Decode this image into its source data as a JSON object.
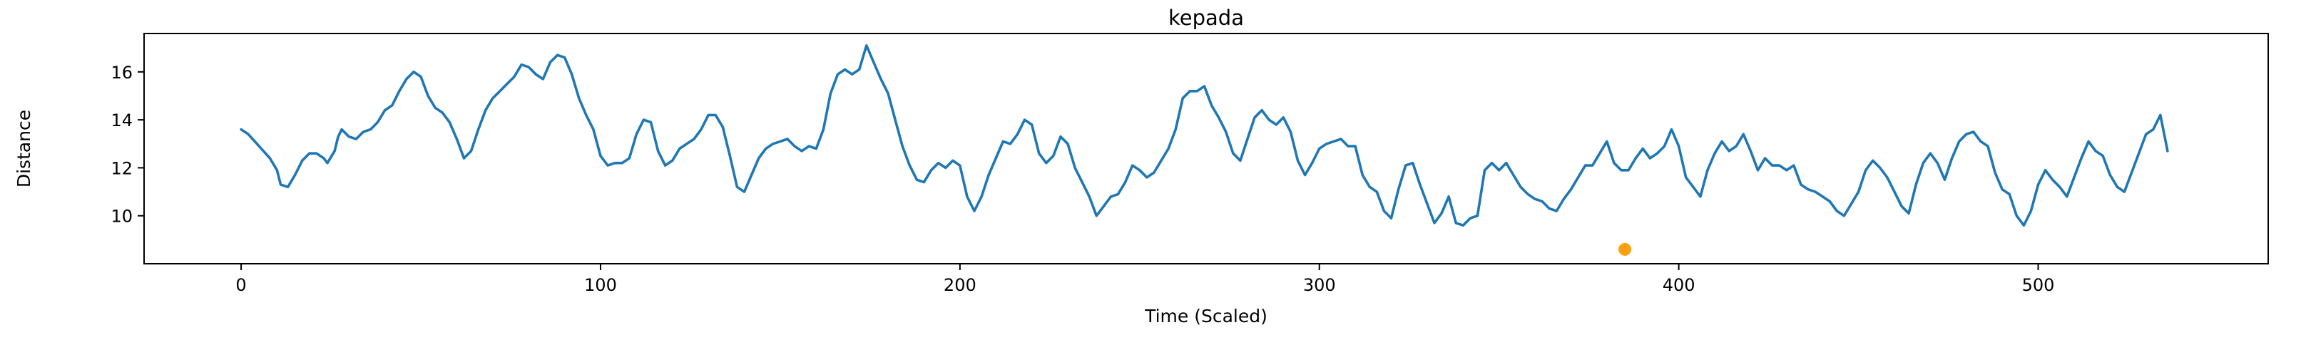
{
  "chart_data": {
    "type": "line",
    "title": "kepada",
    "xlabel": "Time (Scaled)",
    "ylabel": "Distance",
    "xlim": [
      -27,
      564
    ],
    "ylim": [
      8.0,
      17.6
    ],
    "xticks": [
      0,
      100,
      200,
      300,
      400,
      500
    ],
    "yticks": [
      10,
      12,
      14,
      16
    ],
    "grid": false,
    "colors": {
      "line": "#1f77b4",
      "marker": "#ff9f0e"
    },
    "series": [
      {
        "points": [
          [
            0,
            13.6
          ],
          [
            2,
            13.4
          ],
          [
            5,
            12.9
          ],
          [
            8,
            12.4
          ],
          [
            10,
            11.9
          ],
          [
            11,
            11.3
          ],
          [
            13,
            11.2
          ],
          [
            15,
            11.7
          ],
          [
            17,
            12.3
          ],
          [
            19,
            12.6
          ],
          [
            21,
            12.6
          ],
          [
            23,
            12.4
          ],
          [
            24,
            12.2
          ],
          [
            26,
            12.7
          ],
          [
            27,
            13.3
          ],
          [
            28,
            13.6
          ],
          [
            30,
            13.3
          ],
          [
            32,
            13.2
          ],
          [
            34,
            13.5
          ],
          [
            36,
            13.6
          ],
          [
            38,
            13.9
          ],
          [
            40,
            14.4
          ],
          [
            42,
            14.6
          ],
          [
            44,
            15.2
          ],
          [
            46,
            15.7
          ],
          [
            48,
            16.0
          ],
          [
            50,
            15.8
          ],
          [
            52,
            15.0
          ],
          [
            54,
            14.5
          ],
          [
            56,
            14.3
          ],
          [
            58,
            13.9
          ],
          [
            60,
            13.2
          ],
          [
            62,
            12.4
          ],
          [
            64,
            12.7
          ],
          [
            66,
            13.6
          ],
          [
            68,
            14.4
          ],
          [
            70,
            14.9
          ],
          [
            72,
            15.2
          ],
          [
            74,
            15.5
          ],
          [
            76,
            15.8
          ],
          [
            78,
            16.3
          ],
          [
            80,
            16.2
          ],
          [
            82,
            15.9
          ],
          [
            84,
            15.7
          ],
          [
            86,
            16.4
          ],
          [
            88,
            16.7
          ],
          [
            90,
            16.6
          ],
          [
            92,
            15.9
          ],
          [
            94,
            14.9
          ],
          [
            96,
            14.2
          ],
          [
            98,
            13.6
          ],
          [
            100,
            12.5
          ],
          [
            102,
            12.1
          ],
          [
            104,
            12.2
          ],
          [
            106,
            12.2
          ],
          [
            108,
            12.4
          ],
          [
            110,
            13.4
          ],
          [
            112,
            14.0
          ],
          [
            114,
            13.9
          ],
          [
            116,
            12.7
          ],
          [
            118,
            12.1
          ],
          [
            120,
            12.3
          ],
          [
            122,
            12.8
          ],
          [
            124,
            13.0
          ],
          [
            126,
            13.2
          ],
          [
            128,
            13.6
          ],
          [
            130,
            14.2
          ],
          [
            132,
            14.2
          ],
          [
            134,
            13.7
          ],
          [
            136,
            12.5
          ],
          [
            138,
            11.2
          ],
          [
            140,
            11.0
          ],
          [
            142,
            11.7
          ],
          [
            144,
            12.4
          ],
          [
            146,
            12.8
          ],
          [
            148,
            13.0
          ],
          [
            150,
            13.1
          ],
          [
            152,
            13.2
          ],
          [
            154,
            12.9
          ],
          [
            156,
            12.7
          ],
          [
            158,
            12.9
          ],
          [
            160,
            12.8
          ],
          [
            162,
            13.6
          ],
          [
            164,
            15.1
          ],
          [
            166,
            15.9
          ],
          [
            168,
            16.1
          ],
          [
            170,
            15.9
          ],
          [
            172,
            16.1
          ],
          [
            174,
            17.1
          ],
          [
            176,
            16.4
          ],
          [
            178,
            15.7
          ],
          [
            180,
            15.1
          ],
          [
            182,
            14.0
          ],
          [
            184,
            12.9
          ],
          [
            186,
            12.1
          ],
          [
            188,
            11.5
          ],
          [
            190,
            11.4
          ],
          [
            192,
            11.9
          ],
          [
            194,
            12.2
          ],
          [
            196,
            12.0
          ],
          [
            198,
            12.3
          ],
          [
            200,
            12.1
          ],
          [
            202,
            10.8
          ],
          [
            204,
            10.2
          ],
          [
            206,
            10.8
          ],
          [
            208,
            11.7
          ],
          [
            210,
            12.4
          ],
          [
            212,
            13.1
          ],
          [
            214,
            13.0
          ],
          [
            216,
            13.4
          ],
          [
            218,
            14.0
          ],
          [
            220,
            13.8
          ],
          [
            222,
            12.6
          ],
          [
            224,
            12.2
          ],
          [
            226,
            12.5
          ],
          [
            228,
            13.3
          ],
          [
            230,
            13.0
          ],
          [
            232,
            12.0
          ],
          [
            234,
            11.4
          ],
          [
            236,
            10.8
          ],
          [
            238,
            10.0
          ],
          [
            240,
            10.4
          ],
          [
            242,
            10.8
          ],
          [
            244,
            10.9
          ],
          [
            246,
            11.4
          ],
          [
            248,
            12.1
          ],
          [
            250,
            11.9
          ],
          [
            252,
            11.6
          ],
          [
            254,
            11.8
          ],
          [
            256,
            12.3
          ],
          [
            258,
            12.8
          ],
          [
            260,
            13.6
          ],
          [
            262,
            14.9
          ],
          [
            264,
            15.2
          ],
          [
            266,
            15.2
          ],
          [
            268,
            15.4
          ],
          [
            270,
            14.6
          ],
          [
            272,
            14.1
          ],
          [
            274,
            13.5
          ],
          [
            276,
            12.6
          ],
          [
            278,
            12.3
          ],
          [
            280,
            13.2
          ],
          [
            282,
            14.1
          ],
          [
            284,
            14.4
          ],
          [
            286,
            14.0
          ],
          [
            288,
            13.8
          ],
          [
            290,
            14.1
          ],
          [
            292,
            13.5
          ],
          [
            294,
            12.3
          ],
          [
            296,
            11.7
          ],
          [
            298,
            12.2
          ],
          [
            300,
            12.8
          ],
          [
            302,
            13.0
          ],
          [
            304,
            13.1
          ],
          [
            306,
            13.2
          ],
          [
            308,
            12.9
          ],
          [
            310,
            12.9
          ],
          [
            312,
            11.7
          ],
          [
            314,
            11.2
          ],
          [
            316,
            11.0
          ],
          [
            318,
            10.2
          ],
          [
            320,
            9.9
          ],
          [
            322,
            11.1
          ],
          [
            324,
            12.1
          ],
          [
            326,
            12.2
          ],
          [
            328,
            11.3
          ],
          [
            330,
            10.5
          ],
          [
            332,
            9.7
          ],
          [
            334,
            10.1
          ],
          [
            336,
            10.8
          ],
          [
            338,
            9.7
          ],
          [
            340,
            9.6
          ],
          [
            342,
            9.9
          ],
          [
            344,
            10.0
          ],
          [
            346,
            11.9
          ],
          [
            348,
            12.2
          ],
          [
            350,
            11.9
          ],
          [
            352,
            12.2
          ],
          [
            354,
            11.7
          ],
          [
            356,
            11.2
          ],
          [
            358,
            10.9
          ],
          [
            360,
            10.7
          ],
          [
            362,
            10.6
          ],
          [
            364,
            10.3
          ],
          [
            366,
            10.2
          ],
          [
            368,
            10.7
          ],
          [
            370,
            11.1
          ],
          [
            372,
            11.6
          ],
          [
            374,
            12.1
          ],
          [
            376,
            12.1
          ],
          [
            378,
            12.6
          ],
          [
            380,
            13.1
          ],
          [
            382,
            12.2
          ],
          [
            384,
            11.9
          ],
          [
            386,
            11.9
          ],
          [
            388,
            12.4
          ],
          [
            390,
            12.8
          ],
          [
            392,
            12.4
          ],
          [
            394,
            12.6
          ],
          [
            396,
            12.9
          ],
          [
            398,
            13.6
          ],
          [
            400,
            12.9
          ],
          [
            402,
            11.6
          ],
          [
            404,
            11.2
          ],
          [
            406,
            10.8
          ],
          [
            408,
            11.9
          ],
          [
            410,
            12.6
          ],
          [
            412,
            13.1
          ],
          [
            414,
            12.7
          ],
          [
            416,
            12.9
          ],
          [
            418,
            13.4
          ],
          [
            420,
            12.7
          ],
          [
            422,
            11.9
          ],
          [
            424,
            12.4
          ],
          [
            426,
            12.1
          ],
          [
            428,
            12.1
          ],
          [
            430,
            11.9
          ],
          [
            432,
            12.1
          ],
          [
            434,
            11.3
          ],
          [
            436,
            11.1
          ],
          [
            438,
            11.0
          ],
          [
            440,
            10.8
          ],
          [
            442,
            10.6
          ],
          [
            444,
            10.2
          ],
          [
            446,
            10.0
          ],
          [
            448,
            10.5
          ],
          [
            450,
            11.0
          ],
          [
            452,
            11.9
          ],
          [
            454,
            12.3
          ],
          [
            456,
            12.0
          ],
          [
            458,
            11.6
          ],
          [
            460,
            11.0
          ],
          [
            462,
            10.4
          ],
          [
            464,
            10.1
          ],
          [
            466,
            11.3
          ],
          [
            468,
            12.2
          ],
          [
            470,
            12.6
          ],
          [
            472,
            12.2
          ],
          [
            474,
            11.5
          ],
          [
            476,
            12.4
          ],
          [
            478,
            13.1
          ],
          [
            480,
            13.4
          ],
          [
            482,
            13.5
          ],
          [
            484,
            13.1
          ],
          [
            486,
            12.9
          ],
          [
            488,
            11.8
          ],
          [
            490,
            11.1
          ],
          [
            492,
            10.9
          ],
          [
            494,
            10.0
          ],
          [
            496,
            9.6
          ],
          [
            498,
            10.2
          ],
          [
            500,
            11.3
          ],
          [
            502,
            11.9
          ],
          [
            504,
            11.5
          ],
          [
            506,
            11.2
          ],
          [
            508,
            10.8
          ],
          [
            510,
            11.6
          ],
          [
            512,
            12.4
          ],
          [
            514,
            13.1
          ],
          [
            516,
            12.7
          ],
          [
            518,
            12.5
          ],
          [
            520,
            11.7
          ],
          [
            522,
            11.2
          ],
          [
            524,
            11.0
          ],
          [
            526,
            11.8
          ],
          [
            528,
            12.6
          ],
          [
            530,
            13.4
          ],
          [
            532,
            13.6
          ],
          [
            534,
            14.2
          ],
          [
            536,
            12.7
          ]
        ]
      }
    ],
    "highlight": {
      "x": 385,
      "y": 8.6
    }
  }
}
